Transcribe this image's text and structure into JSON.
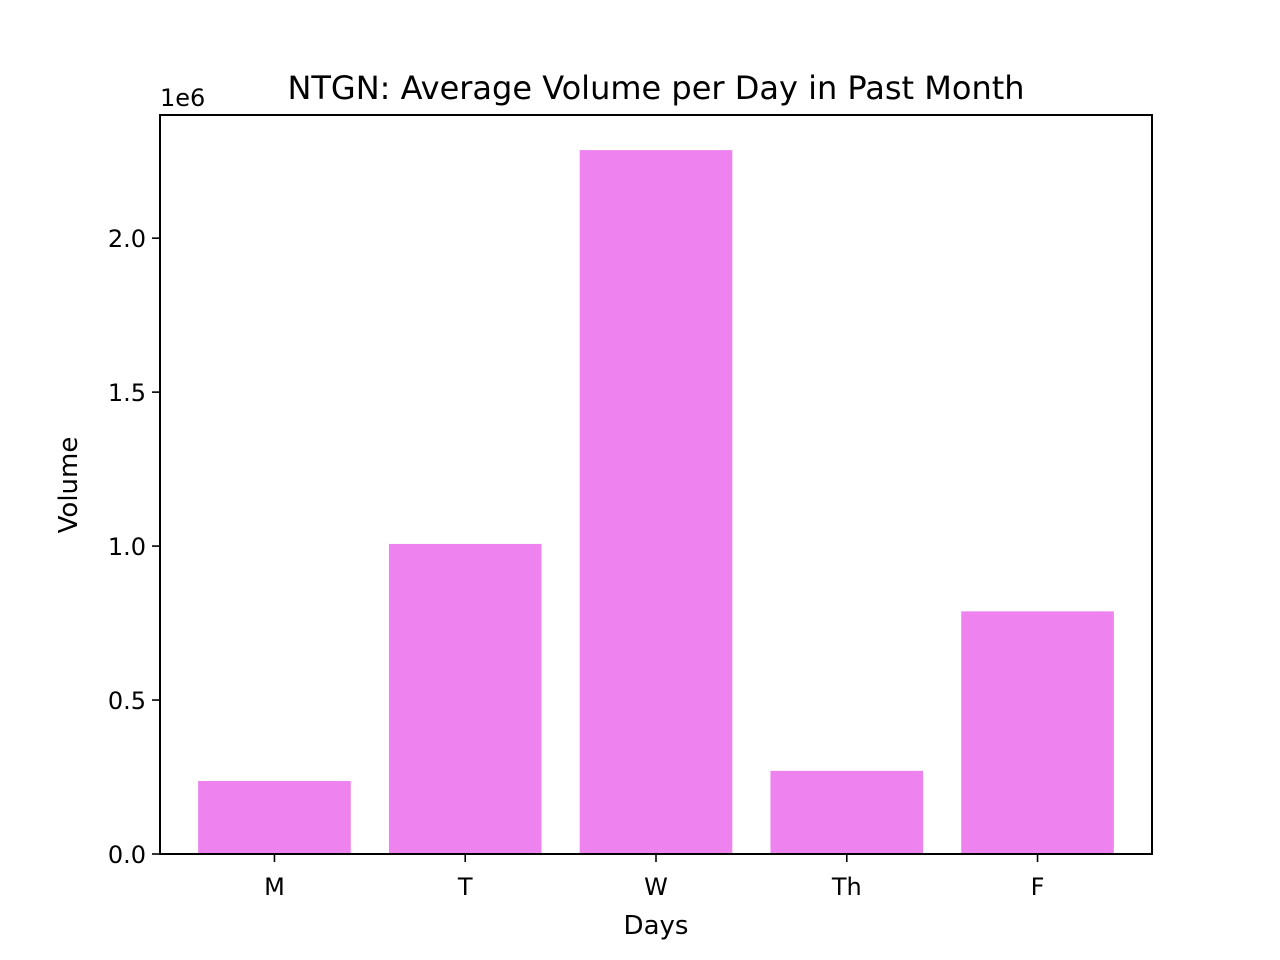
{
  "chart_data": {
    "type": "bar",
    "title": "NTGN: Average Volume per Day in Past Month",
    "xlabel": "Days",
    "ylabel": "Volume",
    "categories": [
      "M",
      "T",
      "W",
      "Th",
      "F"
    ],
    "values": [
      237000,
      1007000,
      2286000,
      270000,
      788000
    ],
    "ylim": [
      0,
      2400000
    ],
    "y_ticks": [
      0,
      500000,
      1000000,
      1500000,
      2000000
    ],
    "y_tick_labels": [
      "0.0",
      "0.5",
      "1.0",
      "1.5",
      "2.0"
    ],
    "y_offset_label": "1e6",
    "bar_color": "#ee82ee",
    "grid": false,
    "legend": "none"
  }
}
